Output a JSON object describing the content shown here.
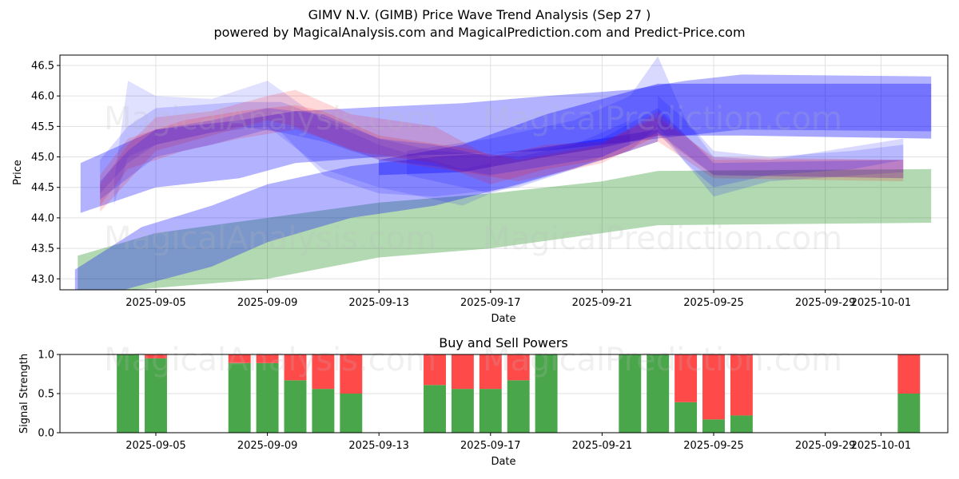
{
  "header": {
    "title": "GIMV N.V. (GIMB) Price Wave Trend Analysis (Sep 27 )",
    "subtitle": "powered by MagicalAnalysis.com and MagicalPrediction.com and Predict-Price.com"
  },
  "watermarks": [
    "MagicalAnalysis.com",
    "MagicalPrediction.com"
  ],
  "colors": {
    "blue": "#0000ff",
    "red": "#ff0000",
    "green": "#008000",
    "buy": "#4aa64a",
    "sell": "#ff4a4a",
    "grid": "#e0e0e0"
  },
  "chart_data": [
    {
      "type": "area",
      "title": "",
      "xlabel": "Date",
      "ylabel": "Price",
      "ylim": [
        42.82,
        46.67
      ],
      "xlim": [
        "2025-09-02.56",
        "2025-10-03.4"
      ],
      "yticks": [
        43.0,
        43.5,
        44.0,
        44.5,
        45.0,
        45.5,
        46.0,
        46.5
      ],
      "ytick_labels": [
        "43.0",
        "43.5",
        "44.0",
        "44.5",
        "45.0",
        "45.5",
        "46.0",
        "46.5"
      ],
      "xticks": [
        "2025-09-05",
        "2025-09-09",
        "2025-09-13",
        "2025-09-17",
        "2025-09-21",
        "2025-09-25",
        "2025-09-29",
        "2025-10-01"
      ],
      "grid": true,
      "bands": [
        {
          "name": "green-trend-band",
          "color": "green",
          "alpha": 0.3,
          "x": [
            "2025-09-02.2",
            "2025-09-05",
            "2025-09-09",
            "2025-09-13",
            "2025-09-17",
            "2025-09-21",
            "2025-09-23",
            "2025-10-02.8"
          ],
          "upper": [
            43.38,
            43.75,
            44.0,
            44.25,
            44.4,
            44.6,
            44.77,
            44.8
          ],
          "lower": [
            42.75,
            42.85,
            43.0,
            43.35,
            43.5,
            43.75,
            43.88,
            43.92
          ]
        },
        {
          "name": "blue-long-band-low",
          "color": "blue",
          "alpha": 0.3,
          "x": [
            "2025-09-02.1",
            "2025-09-04.5",
            "2025-09-07",
            "2025-09-09",
            "2025-09-12",
            "2025-09-15",
            "2025-09-18",
            "2025-09-21",
            "2025-09-23"
          ],
          "upper": [
            43.15,
            43.85,
            44.2,
            44.55,
            44.85,
            45.0,
            45.1,
            45.3,
            45.45
          ],
          "lower": [
            42.6,
            42.9,
            43.2,
            43.6,
            44.0,
            44.2,
            44.55,
            44.95,
            45.25
          ]
        },
        {
          "name": "blue-long-band-mid",
          "color": "blue",
          "alpha": 0.3,
          "x": [
            "2025-09-02.3",
            "2025-09-05",
            "2025-09-08",
            "2025-09-10",
            "2025-09-13",
            "2025-09-16",
            "2025-09-19",
            "2025-09-22",
            "2025-09-24",
            "2025-09-26",
            "2025-10-02.8"
          ],
          "upper": [
            44.9,
            45.45,
            45.6,
            45.75,
            45.82,
            45.88,
            46.0,
            46.1,
            46.25,
            46.35,
            46.32
          ],
          "lower": [
            44.08,
            44.5,
            44.65,
            44.9,
            45.0,
            45.05,
            45.1,
            45.25,
            45.35,
            45.45,
            45.42
          ]
        },
        {
          "name": "blue-right-band",
          "color": "blue",
          "alpha": 0.35,
          "x": [
            "2025-09-13",
            "2025-09-16",
            "2025-09-19",
            "2025-09-21",
            "2025-09-23",
            "2025-09-26",
            "2025-10-02.8"
          ],
          "upper": [
            44.95,
            45.2,
            45.7,
            45.95,
            46.2,
            46.2,
            46.2
          ],
          "lower": [
            44.7,
            44.75,
            45.0,
            45.15,
            45.35,
            45.35,
            45.3
          ]
        },
        {
          "name": "blue-wave-peak",
          "color": "blue",
          "alpha": 0.15,
          "x": [
            "2025-09-14",
            "2025-09-17",
            "2025-09-20",
            "2025-09-22",
            "2025-09-23",
            "2025-09-24",
            "2025-09-25",
            "2025-09-27",
            "2025-10-01.8"
          ],
          "upper": [
            45.1,
            45.3,
            45.6,
            46.0,
            46.65,
            45.6,
            45.0,
            44.95,
            45.3
          ],
          "lower": [
            44.7,
            44.4,
            44.8,
            45.1,
            45.5,
            44.9,
            44.35,
            44.6,
            44.75
          ]
        },
        {
          "name": "blue-wave-1",
          "color": "blue",
          "alpha": 0.12,
          "x": [
            "2025-09-03.5",
            "2025-09-04",
            "2025-09-05",
            "2025-09-07",
            "2025-09-09",
            "2025-09-11",
            "2025-09-13",
            "2025-09-16",
            "2025-09-17"
          ],
          "upper": [
            44.6,
            46.25,
            46.0,
            45.95,
            46.25,
            45.6,
            45.2,
            44.8,
            44.9
          ],
          "lower": [
            44.2,
            45.0,
            45.2,
            45.4,
            45.5,
            44.8,
            44.5,
            44.2,
            44.4
          ]
        },
        {
          "name": "blue-wave-2",
          "color": "blue",
          "alpha": 0.15,
          "x": [
            "2025-09-03",
            "2025-09-04",
            "2025-09-05",
            "2025-09-08",
            "2025-09-09.5",
            "2025-09-11",
            "2025-09-13",
            "2025-09-15",
            "2025-09-18",
            "2025-09-20",
            "2025-09-22"
          ],
          "upper": [
            44.95,
            45.5,
            45.8,
            45.9,
            45.9,
            45.65,
            45.3,
            45.1,
            45.0,
            45.2,
            45.6
          ],
          "lower": [
            44.4,
            44.9,
            45.2,
            45.5,
            45.4,
            44.7,
            44.4,
            44.35,
            44.5,
            44.8,
            45.2
          ]
        },
        {
          "name": "red-wave-1",
          "color": "red",
          "alpha": 0.15,
          "x": [
            "2025-09-03",
            "2025-09-04",
            "2025-09-05",
            "2025-09-07",
            "2025-09-09",
            "2025-09-10",
            "2025-09-12",
            "2025-09-15",
            "2025-09-17",
            "2025-09-19",
            "2025-09-21",
            "2025-09-23",
            "2025-09-25",
            "2025-10-01.8"
          ],
          "upper": [
            44.55,
            45.2,
            45.65,
            45.75,
            46.0,
            46.1,
            45.7,
            45.5,
            45.0,
            45.2,
            45.25,
            45.65,
            45.0,
            44.95
          ],
          "lower": [
            44.1,
            44.6,
            45.1,
            45.35,
            45.6,
            45.5,
            45.1,
            44.9,
            44.55,
            44.8,
            44.95,
            45.25,
            44.65,
            44.6
          ]
        },
        {
          "name": "red-wave-2",
          "color": "red",
          "alpha": 0.15,
          "x": [
            "2025-09-03",
            "2025-09-04",
            "2025-09-06",
            "2025-09-08",
            "2025-09-10",
            "2025-09-11",
            "2025-09-13",
            "2025-09-16",
            "2025-09-18",
            "2025-09-21",
            "2025-09-23",
            "2025-09-25",
            "2025-10-01.8"
          ],
          "upper": [
            44.7,
            45.3,
            45.6,
            45.75,
            45.85,
            45.75,
            45.35,
            45.15,
            44.95,
            45.2,
            45.75,
            44.95,
            44.95
          ],
          "lower": [
            44.2,
            44.8,
            45.1,
            45.3,
            45.45,
            45.3,
            44.95,
            44.75,
            44.6,
            44.9,
            45.35,
            44.7,
            44.65
          ]
        },
        {
          "name": "purple-wave-1",
          "color": "blue",
          "alpha": 0.18,
          "x": [
            "2025-09-03",
            "2025-09-04",
            "2025-09-05",
            "2025-09-07",
            "2025-09-09",
            "2025-09-11",
            "2025-09-13",
            "2025-09-15",
            "2025-09-17",
            "2025-09-19",
            "2025-09-21",
            "2025-09-23",
            "2025-09-25",
            "2025-10-01.8"
          ],
          "upper": [
            44.6,
            45.1,
            45.45,
            45.6,
            45.8,
            45.7,
            45.3,
            45.2,
            45.0,
            45.15,
            45.3,
            45.8,
            44.9,
            44.95
          ],
          "lower": [
            44.3,
            44.65,
            45.0,
            45.2,
            45.45,
            45.25,
            44.95,
            44.85,
            44.7,
            44.85,
            45.0,
            45.4,
            44.7,
            44.65
          ]
        },
        {
          "name": "blue-wave-right",
          "color": "blue",
          "alpha": 0.15,
          "x": [
            "2025-09-23",
            "2025-09-24",
            "2025-09-25",
            "2025-09-27",
            "2025-09-30",
            "2025-10-01.8"
          ],
          "upper": [
            46.0,
            45.6,
            45.1,
            45.0,
            45.1,
            45.2
          ],
          "lower": [
            45.4,
            44.9,
            44.5,
            44.7,
            44.8,
            44.95
          ]
        }
      ]
    },
    {
      "type": "bar",
      "title": "Buy and Sell Powers",
      "xlabel": "Date",
      "ylabel": "Signal Strength",
      "ylim": [
        0,
        1
      ],
      "yticks": [
        0.0,
        0.5,
        1.0
      ],
      "ytick_labels": [
        "0.0",
        "0.5",
        "1.0"
      ],
      "xticks": [
        "2025-09-05",
        "2025-09-09",
        "2025-09-13",
        "2025-09-17",
        "2025-09-21",
        "2025-09-25",
        "2025-09-29",
        "2025-10-01"
      ],
      "grid": true,
      "stacked": true,
      "dates": [
        "2025-09-04",
        "2025-09-05",
        "2025-09-08",
        "2025-09-09",
        "2025-09-10",
        "2025-09-11",
        "2025-09-12",
        "2025-09-15",
        "2025-09-16",
        "2025-09-17",
        "2025-09-18",
        "2025-09-19",
        "2025-09-22",
        "2025-09-23",
        "2025-09-24",
        "2025-09-25",
        "2025-09-26",
        "2025-10-02"
      ],
      "series": [
        {
          "name": "Buy",
          "color": "buy",
          "values": [
            1.0,
            0.95,
            0.89,
            0.89,
            0.67,
            0.56,
            0.5,
            0.61,
            0.56,
            0.56,
            0.67,
            1.0,
            1.0,
            1.0,
            0.39,
            0.17,
            0.22,
            0.5
          ]
        },
        {
          "name": "Sell",
          "color": "sell",
          "values": [
            0.0,
            0.05,
            0.11,
            0.11,
            0.33,
            0.44,
            0.5,
            0.39,
            0.44,
            0.44,
            0.33,
            0.0,
            0.0,
            0.0,
            0.61,
            0.83,
            0.78,
            0.5
          ]
        }
      ]
    }
  ]
}
